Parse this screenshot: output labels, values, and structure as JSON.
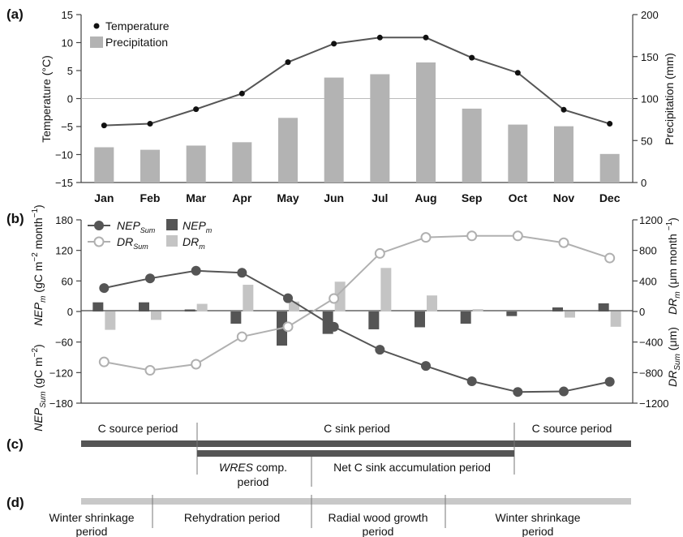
{
  "chart_data": [
    {
      "panel": "(a)",
      "type": "bar+line",
      "categories": [
        "Jan",
        "Feb",
        "Mar",
        "Apr",
        "May",
        "Jun",
        "Jul",
        "Aug",
        "Sep",
        "Oct",
        "Nov",
        "Dec"
      ],
      "series": [
        {
          "name": "Temperature",
          "type": "line",
          "axis": "left",
          "color": "#555555",
          "values": [
            -4.8,
            -4.5,
            -1.9,
            0.9,
            6.5,
            9.8,
            10.9,
            10.9,
            7.3,
            4.6,
            -2.0,
            -4.5
          ]
        },
        {
          "name": "Precipitation",
          "type": "bar",
          "axis": "right",
          "color": "#b3b3b3",
          "values": [
            42,
            39,
            44,
            48,
            77,
            125,
            129,
            143,
            88,
            69,
            67,
            34
          ]
        }
      ],
      "ylabel_left": "Temperature (°C)",
      "ylabel_right": "Precipitation (mm)",
      "ylim_left": [
        -15,
        15
      ],
      "ylim_right": [
        0,
        200
      ],
      "yticks_left": [
        "15",
        "10",
        "5",
        "0",
        "−5",
        "−10",
        "−15"
      ],
      "yticks_right": [
        "200",
        "150",
        "100",
        "50",
        "0"
      ],
      "legend_position": "top-left"
    },
    {
      "panel": "(b)",
      "type": "bar+line",
      "categories": [
        "Jan",
        "Feb",
        "Mar",
        "Apr",
        "May",
        "Jun",
        "Jul",
        "Aug",
        "Sep",
        "Oct",
        "Nov",
        "Dec"
      ],
      "series": [
        {
          "name": "NEP_Sum",
          "label_main": "NEP",
          "label_sub": "Sum",
          "type": "line",
          "axis": "left",
          "color": "#555555",
          "values": [
            46,
            65,
            80,
            76,
            26,
            -30,
            -75,
            -107,
            -137,
            -158,
            -157,
            -138
          ]
        },
        {
          "name": "DR_Sum",
          "label_main": "DR",
          "label_sub": "Sum",
          "type": "line",
          "axis": "right",
          "color": "#b0b0b0",
          "values": [
            -660,
            -770,
            -690,
            -330,
            -200,
            170,
            760,
            970,
            990,
            990,
            900,
            700
          ]
        },
        {
          "name": "NEP_m",
          "label_main": "NEP",
          "label_sub": "m",
          "type": "bar",
          "axis": "left",
          "color": "#555555",
          "values": [
            18,
            18,
            4,
            -24,
            -67,
            -44,
            -35,
            -31,
            -24,
            -9,
            8,
            16
          ]
        },
        {
          "name": "DR_m",
          "label_main": "DR",
          "label_sub": "m",
          "type": "bar",
          "axis": "right",
          "color": "#c4c4c4",
          "values": [
            -240,
            -110,
            100,
            350,
            130,
            390,
            570,
            210,
            30,
            0,
            -80,
            -200
          ]
        }
      ],
      "ylim_left": [
        180,
        -180
      ],
      "ylim_right": [
        -1200,
        1200
      ],
      "yticks_left": [
        "−180",
        "−120",
        "−60",
        "0",
        "60",
        "120",
        "180"
      ],
      "yticks_right": [
        "1200",
        "800",
        "400",
        "0",
        "−400",
        "−800",
        "−1200"
      ],
      "ylabel_left_top": {
        "main": "NEP",
        "sub": "m",
        "rest": " (gC m",
        "sup1": "−2",
        "rest2": " month",
        "sup2": "−1",
        "end": ")"
      },
      "ylabel_left_bottom": {
        "main": "NEP",
        "sub": "Sum",
        "rest": " (gC m",
        "sup1": "−2",
        "end": ")"
      },
      "ylabel_right_top": {
        "main": "DR",
        "sub": "m",
        "rest": " (μm month ",
        "sup1": "−1",
        "end": ")"
      },
      "ylabel_right_bottom": {
        "main": "DR",
        "sub": "Sum",
        "rest": " (μm)"
      },
      "legend_position": "top-left"
    }
  ],
  "panels": {
    "a": "(a)",
    "b": "(b)",
    "c": "(c)",
    "d": "(d)"
  },
  "panel_c": {
    "source_1": "C source period",
    "sink": "C sink period",
    "source_2": "C source period",
    "wres_italic": "WRES",
    "wres_rest": " comp.",
    "wres_line2": "period",
    "net_sink": "Net C sink accumulation period",
    "colors": {
      "bar": "#555555"
    }
  },
  "panel_d": {
    "winter_1_line1": "Winter shrinkage",
    "winter_1_line2": "period",
    "rehydration": "Rehydration period",
    "growth_line1": "Radial wood growth",
    "growth_line2": "period",
    "winter_2_line1": "Winter shrinkage",
    "winter_2_line2": "period",
    "colors": {
      "bar": "#c8c8c8"
    }
  }
}
